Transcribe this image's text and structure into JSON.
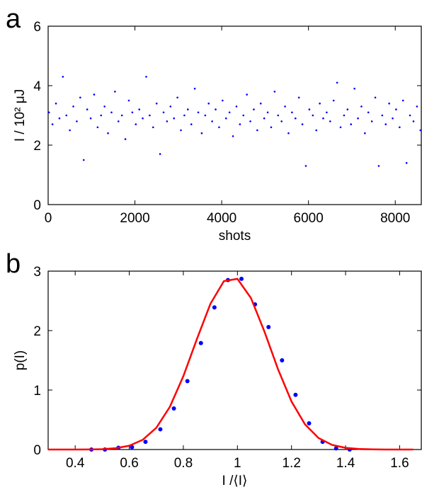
{
  "chart_data": [
    {
      "type": "scatter",
      "panel": "a",
      "x_label": "shots",
      "y_label": "I / 10² μJ",
      "color": "#0000ff",
      "xlim": [
        0,
        8600
      ],
      "xticks": [
        0,
        2000,
        4000,
        6000,
        8000
      ],
      "ylim": [
        0,
        6
      ],
      "yticks": [
        0,
        2,
        4,
        6
      ],
      "x": [
        20,
        100,
        180,
        260,
        340,
        420,
        500,
        580,
        660,
        740,
        820,
        900,
        980,
        1060,
        1140,
        1220,
        1300,
        1380,
        1460,
        1540,
        1620,
        1700,
        1780,
        1860,
        1940,
        2020,
        2100,
        2180,
        2260,
        2340,
        2420,
        2500,
        2580,
        2660,
        2740,
        2820,
        2900,
        2980,
        3060,
        3140,
        3220,
        3300,
        3380,
        3460,
        3540,
        3620,
        3700,
        3780,
        3860,
        3940,
        4020,
        4100,
        4180,
        4260,
        4340,
        4420,
        4500,
        4580,
        4660,
        4740,
        4820,
        4900,
        4980,
        5060,
        5140,
        5220,
        5300,
        5380,
        5460,
        5540,
        5620,
        5700,
        5780,
        5860,
        5940,
        6020,
        6100,
        6180,
        6260,
        6340,
        6420,
        6500,
        6580,
        6660,
        6740,
        6820,
        6900,
        6980,
        7060,
        7140,
        7220,
        7300,
        7380,
        7460,
        7540,
        7620,
        7700,
        7780,
        7860,
        7940,
        8020,
        8100,
        8180,
        8260,
        8340,
        8420,
        8500,
        8580
      ],
      "values": [
        3.1,
        2.7,
        3.4,
        2.9,
        4.3,
        3.0,
        2.5,
        3.3,
        2.8,
        3.6,
        1.5,
        3.2,
        2.9,
        3.7,
        2.6,
        3.0,
        3.3,
        2.4,
        3.1,
        3.8,
        2.8,
        3.0,
        2.2,
        3.5,
        3.1,
        2.7,
        3.2,
        2.9,
        4.3,
        3.0,
        2.6,
        3.4,
        1.7,
        3.1,
        2.8,
        3.3,
        2.9,
        3.6,
        2.5,
        3.0,
        3.2,
        2.7,
        3.9,
        3.1,
        2.4,
        3.0,
        3.4,
        2.8,
        3.2,
        2.6,
        3.5,
        2.9,
        3.1,
        2.3,
        3.3,
        2.7,
        3.0,
        3.7,
        2.8,
        3.2,
        2.5,
        3.4,
        2.9,
        3.1,
        2.6,
        3.8,
        3.0,
        2.8,
        3.3,
        2.4,
        3.1,
        2.9,
        3.6,
        2.7,
        1.3,
        3.2,
        3.0,
        2.5,
        3.4,
        2.9,
        3.1,
        2.8,
        3.5,
        4.1,
        2.6,
        3.0,
        3.2,
        2.7,
        3.9,
        2.9,
        3.3,
        2.4,
        3.1,
        2.8,
        3.6,
        1.3,
        3.0,
        2.7,
        3.4,
        2.9,
        3.2,
        2.6,
        3.5,
        1.4,
        3.0,
        2.8,
        3.3,
        2.5
      ]
    },
    {
      "type": "scatter",
      "panel": "b",
      "x_label": "I /⟨I⟩",
      "y_label": "p(I)",
      "color": "#0000ff",
      "xlim": [
        0.3,
        1.68
      ],
      "xticks": [
        0.4,
        0.6,
        0.8,
        1,
        1.2,
        1.4,
        1.6
      ],
      "ylim": [
        0,
        3
      ],
      "yticks": [
        0,
        1,
        2,
        3
      ],
      "x": [
        0.46,
        0.51,
        0.56,
        0.61,
        0.66,
        0.715,
        0.765,
        0.815,
        0.865,
        0.915,
        0.965,
        1.015,
        1.065,
        1.115,
        1.165,
        1.215,
        1.265,
        1.315,
        1.365,
        1.415
      ],
      "values": [
        0,
        0,
        0.03,
        0.04,
        0.13,
        0.34,
        0.69,
        1.15,
        1.79,
        2.39,
        2.85,
        2.87,
        2.44,
        2.06,
        1.5,
        0.92,
        0.44,
        0.13,
        0.02,
        0
      ],
      "fit": {
        "color": "#ff0000",
        "x": [
          0.3,
          0.35,
          0.4,
          0.45,
          0.5,
          0.55,
          0.6,
          0.65,
          0.7,
          0.75,
          0.8,
          0.85,
          0.9,
          0.95,
          1,
          1.05,
          1.1,
          1.15,
          1.2,
          1.25,
          1.3,
          1.35,
          1.4,
          1.45,
          1.5,
          1.55,
          1.6,
          1.65
        ],
        "values": [
          0,
          0.0001,
          0.0004,
          0.0017,
          0.0066,
          0.022,
          0.064,
          0.164,
          0.366,
          0.717,
          1.233,
          1.856,
          2.449,
          2.832,
          2.87,
          2.548,
          1.983,
          1.352,
          0.808,
          0.423,
          0.194,
          0.078,
          0.028,
          0.0085,
          0.0023,
          0.0005,
          0.0001,
          0
        ]
      }
    }
  ]
}
